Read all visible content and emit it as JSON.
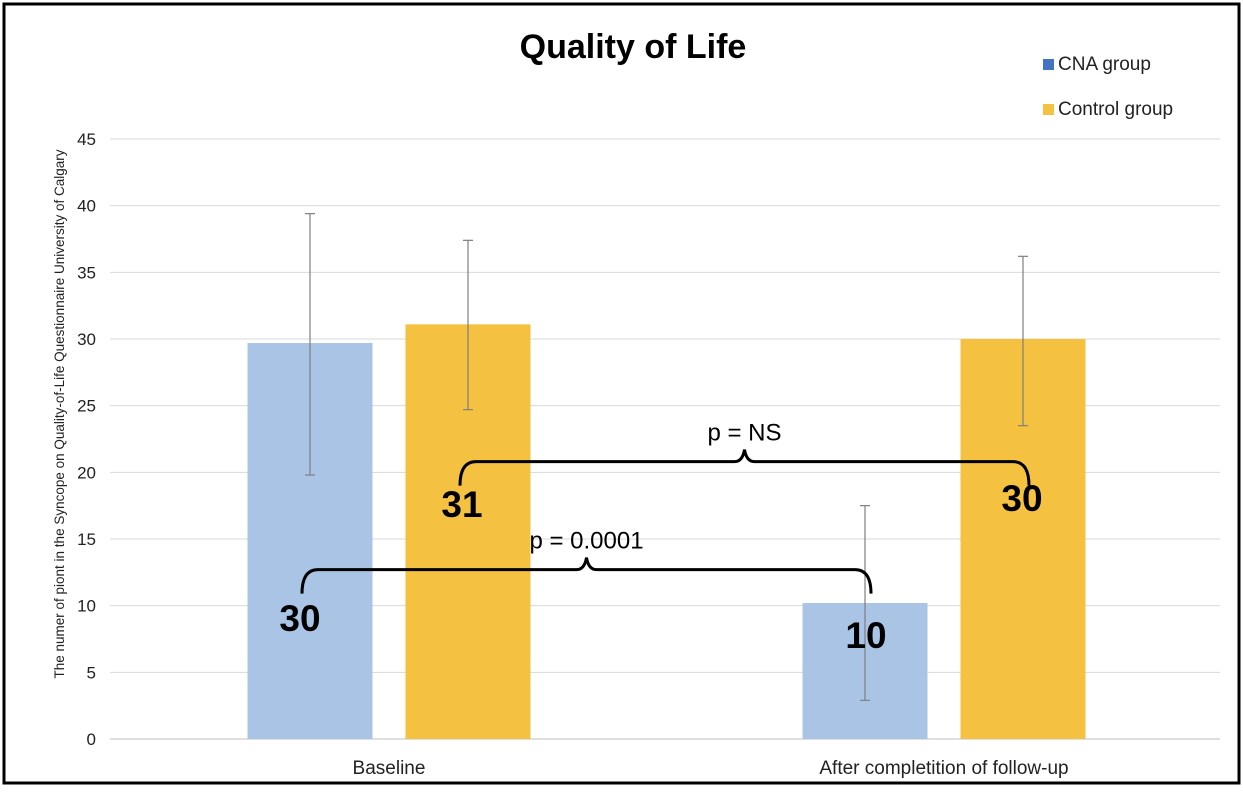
{
  "chart_data": {
    "type": "bar",
    "title": "Quality of Life",
    "xlabel": "",
    "ylabel": "The numer of piont in the Syncope on Quality-of-Life Questionnaire University of Calgary",
    "categories": [
      "Baseline",
      "After completition of follow-up"
    ],
    "ylim": [
      0,
      45
    ],
    "yticks": [
      0,
      5,
      10,
      15,
      20,
      25,
      30,
      35,
      40,
      45
    ],
    "grid": true,
    "legend_position": "top-right",
    "series": [
      {
        "name": "CNA group",
        "color": "#a9c4e4",
        "legend_color": "#4472c4",
        "values": [
          29.7,
          10.2
        ],
        "error_low": [
          19.8,
          2.9
        ],
        "error_high": [
          39.4,
          17.5
        ],
        "data_labels": [
          "30",
          "10"
        ]
      },
      {
        "name": "Control group",
        "color": "#f4c141",
        "legend_color": "#f4c141",
        "values": [
          31.1,
          30.0
        ],
        "error_low": [
          24.7,
          23.5
        ],
        "error_high": [
          37.4,
          36.2
        ],
        "data_labels": [
          "31",
          "30"
        ]
      }
    ],
    "annotations": [
      {
        "text": "p = NS",
        "from": {
          "series": 1,
          "category": 0
        },
        "to": {
          "series": 1,
          "category": 1
        },
        "y": 20.8
      },
      {
        "text": "p = 0.0001",
        "from": {
          "series": 0,
          "category": 0
        },
        "to": {
          "series": 0,
          "category": 1
        },
        "y": 12.7
      }
    ]
  }
}
